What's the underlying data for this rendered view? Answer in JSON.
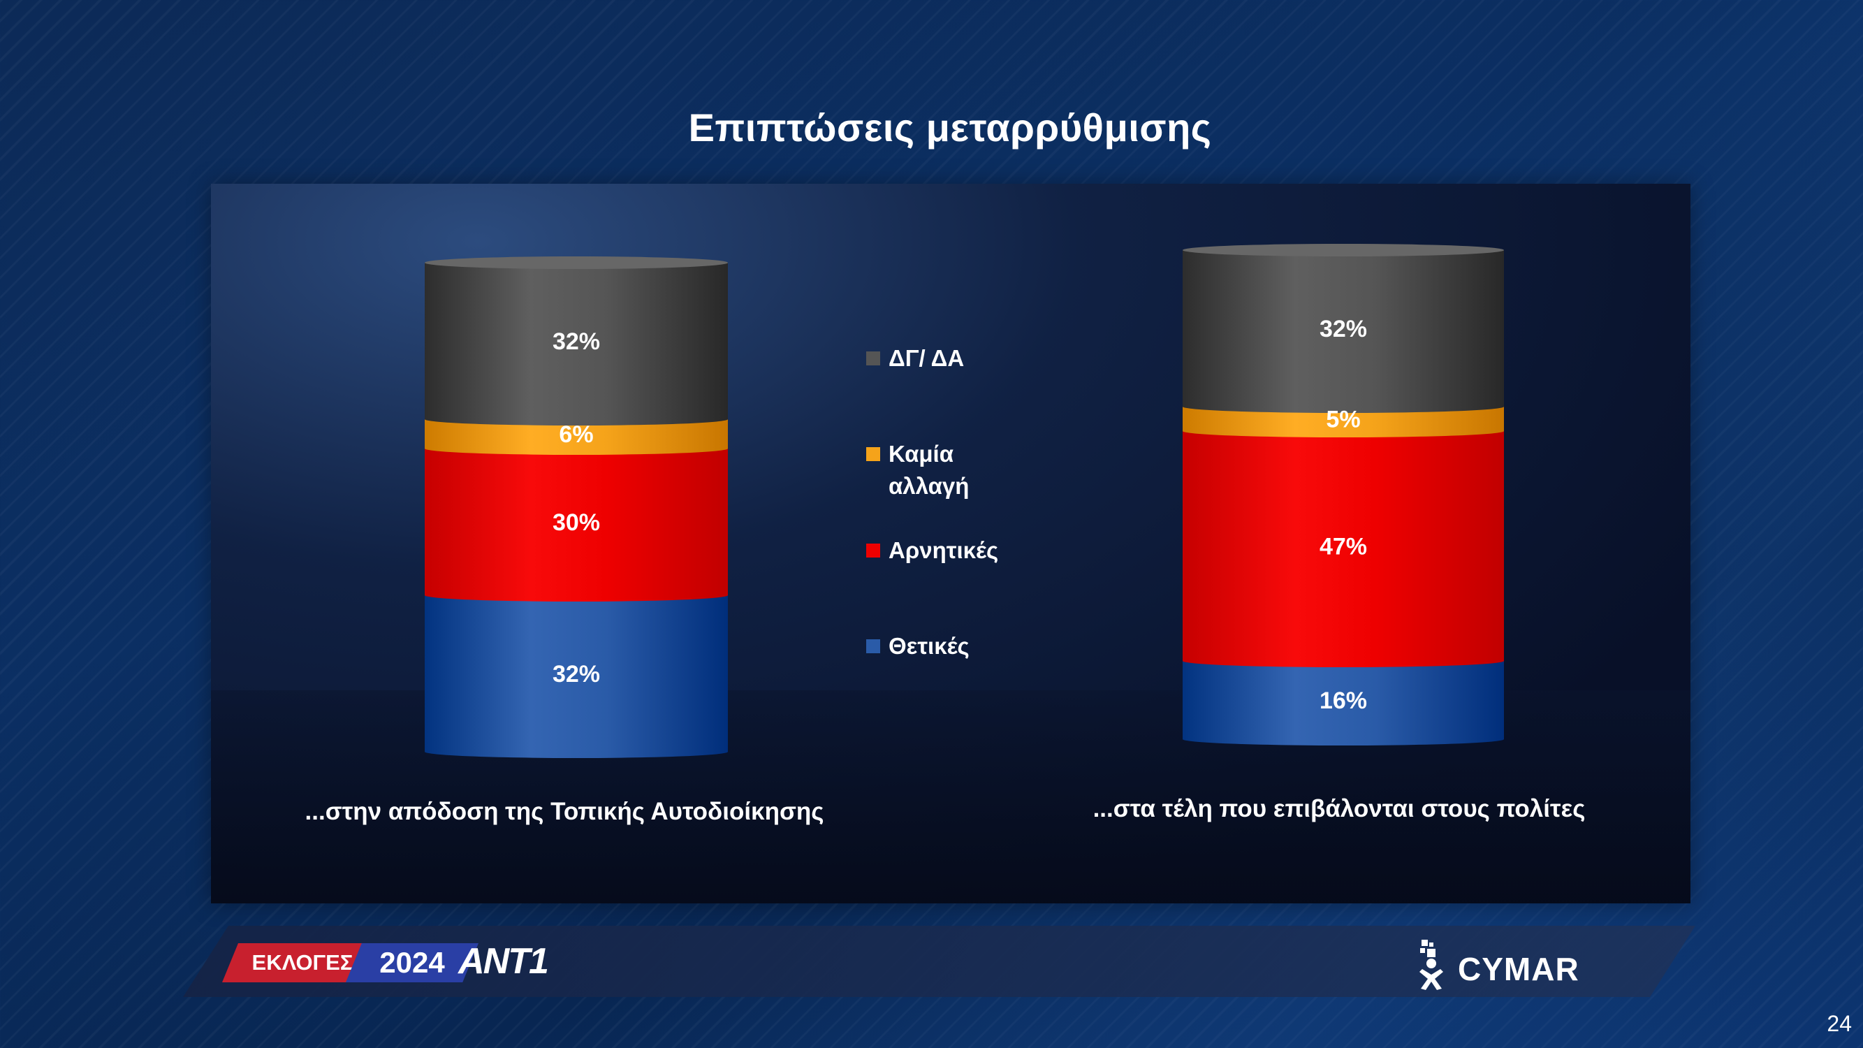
{
  "title": "Επιπτώσεις μεταρρύθμισης",
  "colors": {
    "positive": "#2a5ba8",
    "negative": "#ee0000",
    "no_change": "#f5a31a",
    "dk_na": "#555555"
  },
  "chart_data": {
    "type": "bar",
    "stacked": true,
    "categories": [
      "...στην απόδοση της Τοπικής Αυτοδιοίκησης",
      "...στα τέλη που επιβάλονται στους πολίτες"
    ],
    "series": [
      {
        "name": "Θετικές",
        "values": [
          32,
          16
        ],
        "labels": [
          "32%",
          "16%"
        ]
      },
      {
        "name": "Αρνητικές",
        "values": [
          30,
          47
        ],
        "labels": [
          "30%",
          "47%"
        ]
      },
      {
        "name": "Καμία αλλαγή",
        "values": [
          6,
          5
        ],
        "labels": [
          "6%",
          "5%"
        ]
      },
      {
        "name": "ΔΓ/ ΔΑ",
        "values": [
          32,
          32
        ],
        "labels": [
          "32%",
          "32%"
        ]
      }
    ],
    "legend": [
      "ΔΓ/ ΔΑ",
      "Καμία αλλαγή",
      "Αρνητικές",
      "Θετικές"
    ],
    "legend_position": "center"
  },
  "footer": {
    "elections_label": "ΕΚΛΟΓΕΣ",
    "year_label": "2024",
    "channel_logo": "ANT1",
    "pollster_logo": "CYMAR"
  },
  "page_number": "24"
}
